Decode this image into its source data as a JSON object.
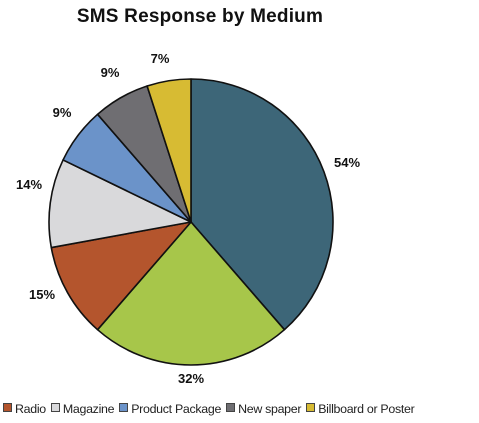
{
  "chart_data": {
    "type": "pie",
    "title": "SMS Response by Medium",
    "slices": [
      {
        "label": "",
        "value": 54,
        "value_label": "54%",
        "color": "#3d6678"
      },
      {
        "label": "",
        "value": 32,
        "value_label": "32%",
        "color": "#a7c64a"
      },
      {
        "label": "Radio",
        "value": 15,
        "value_label": "15%",
        "color": "#b4552d"
      },
      {
        "label": "Magazine",
        "value": 14,
        "value_label": "14%",
        "color": "#d9d9db"
      },
      {
        "label": "Product Package",
        "value": 9,
        "value_label": "9%",
        "color": "#6b93c9"
      },
      {
        "label": "New spaper",
        "value": 9,
        "value_label": "9%",
        "color": "#6f6e72"
      },
      {
        "label": "Billboard or Poster",
        "value": 7,
        "value_label": "7%",
        "color": "#d7bb33"
      }
    ],
    "legend": [
      "Radio",
      "Magazine",
      "Product Package",
      "New spaper",
      "Billboard or Poster"
    ],
    "legend_position": "bottom"
  }
}
